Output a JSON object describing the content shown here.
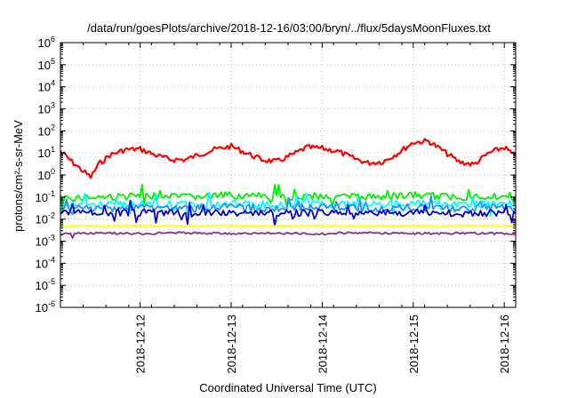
{
  "chart_data": {
    "type": "line",
    "title": "/data/run/goesPlots/archive/2018-12-16/03:00/bryn/../flux/5daysMoonFluxes.txt",
    "xlabel": "Coordinated Universal Time (UTC)",
    "ylabel": "protons/cm²-s-sr-MeV",
    "y_scale": "log",
    "ylim": [
      1e-06,
      1000000.0
    ],
    "y_ticks": [
      {
        "exp": "-6",
        "value": 1e-06
      },
      {
        "exp": "-5",
        "value": 1e-05
      },
      {
        "exp": "-4",
        "value": 0.0001
      },
      {
        "exp": "-3",
        "value": 0.001
      },
      {
        "exp": "-2",
        "value": 0.01
      },
      {
        "exp": "-1",
        "value": 0.1
      },
      {
        "exp": "0",
        "value": 1
      },
      {
        "exp": "1",
        "value": 10
      },
      {
        "exp": "2",
        "value": 100
      },
      {
        "exp": "3",
        "value": 1000
      },
      {
        "exp": "4",
        "value": 10000
      },
      {
        "exp": "5",
        "value": 100000
      },
      {
        "exp": "6",
        "value": 1000000
      }
    ],
    "y_tick_base": "10",
    "xlim": [
      "2018-12-11T03:00",
      "2018-12-16T03:00"
    ],
    "x_ticks": [
      {
        "label": "2018-12-12",
        "value": "2018-12-12T00:00"
      },
      {
        "label": "2018-12-13",
        "value": "2018-12-13T00:00"
      },
      {
        "label": "2018-12-14",
        "value": "2018-12-14T00:00"
      },
      {
        "label": "2018-12-15",
        "value": "2018-12-15T00:00"
      },
      {
        "label": "2018-12-16",
        "value": "2018-12-16T00:00"
      }
    ],
    "grid": true,
    "legend": "none",
    "series": [
      {
        "color": "#ff0000",
        "x": [
          "2018-12-11T03:00",
          "2018-12-11T06:00",
          "2018-12-11T09:00",
          "2018-12-11T11:00",
          "2018-12-11T13:00",
          "2018-12-11T16:00",
          "2018-12-11T20:00",
          "2018-12-12T00:00",
          "2018-12-12T04:00",
          "2018-12-12T08:00",
          "2018-12-12T12:00",
          "2018-12-12T16:00",
          "2018-12-12T20:00",
          "2018-12-13T00:00",
          "2018-12-13T04:00",
          "2018-12-13T08:00",
          "2018-12-13T12:00",
          "2018-12-13T16:00",
          "2018-12-13T20:00",
          "2018-12-14T00:00",
          "2018-12-14T04:00",
          "2018-12-14T08:00",
          "2018-12-14T12:00",
          "2018-12-14T16:00",
          "2018-12-14T20:00",
          "2018-12-15T00:00",
          "2018-12-15T04:00",
          "2018-12-15T08:00",
          "2018-12-15T12:00",
          "2018-12-15T16:00",
          "2018-12-15T20:00",
          "2018-12-16T00:00",
          "2018-12-16T03:00"
        ],
        "values": [
          12,
          4,
          1.5,
          0.8,
          3,
          8,
          14,
          15,
          8,
          5,
          5,
          9,
          15,
          20,
          10,
          5,
          4,
          8,
          18,
          16,
          12,
          6,
          3.5,
          4,
          10,
          30,
          35,
          12,
          4,
          3,
          10,
          18,
          7
        ]
      },
      {
        "color": "#00ee00",
        "x": [
          "2018-12-11T03:00",
          "2018-12-11T12:00",
          "2018-12-12T00:00",
          "2018-12-12T12:00",
          "2018-12-13T00:00",
          "2018-12-13T12:00",
          "2018-12-14T00:00",
          "2018-12-14T12:00",
          "2018-12-15T00:00",
          "2018-12-15T12:00",
          "2018-12-16T00:00",
          "2018-12-16T03:00"
        ],
        "values": [
          0.09,
          0.1,
          0.11,
          0.1,
          0.12,
          0.1,
          0.11,
          0.1,
          0.12,
          0.1,
          0.11,
          0.12
        ]
      },
      {
        "color": "#00ffff",
        "x": [
          "2018-12-11T03:00",
          "2018-12-11T12:00",
          "2018-12-12T00:00",
          "2018-12-12T12:00",
          "2018-12-13T00:00",
          "2018-12-13T12:00",
          "2018-12-14T00:00",
          "2018-12-14T12:00",
          "2018-12-15T00:00",
          "2018-12-15T12:00",
          "2018-12-16T00:00",
          "2018-12-16T03:00"
        ],
        "values": [
          0.04,
          0.045,
          0.05,
          0.045,
          0.05,
          0.045,
          0.05,
          0.045,
          0.05,
          0.045,
          0.05,
          0.045
        ]
      },
      {
        "color": "#1e90ff",
        "x": [
          "2018-12-11T03:00",
          "2018-12-11T12:00",
          "2018-12-12T00:00",
          "2018-12-12T12:00",
          "2018-12-13T00:00",
          "2018-12-13T12:00",
          "2018-12-14T00:00",
          "2018-12-14T12:00",
          "2018-12-15T00:00",
          "2018-12-15T12:00",
          "2018-12-16T00:00",
          "2018-12-16T03:00"
        ],
        "values": [
          0.03,
          0.03,
          0.035,
          0.03,
          0.035,
          0.03,
          0.035,
          0.03,
          0.035,
          0.03,
          0.035,
          0.03
        ]
      },
      {
        "color": "#0000cd",
        "x": [
          "2018-12-11T03:00",
          "2018-12-11T12:00",
          "2018-12-12T00:00",
          "2018-12-12T12:00",
          "2018-12-13T00:00",
          "2018-12-13T12:00",
          "2018-12-14T00:00",
          "2018-12-14T12:00",
          "2018-12-15T00:00",
          "2018-12-15T12:00",
          "2018-12-16T00:00",
          "2018-12-16T03:00"
        ],
        "values": [
          0.018,
          0.02,
          0.02,
          0.018,
          0.02,
          0.018,
          0.02,
          0.018,
          0.02,
          0.018,
          0.02,
          0.018
        ]
      },
      {
        "color": "#ffff00",
        "x": [
          "2018-12-11T03:00",
          "2018-12-16T03:00"
        ],
        "values": [
          0.005,
          0.005
        ]
      },
      {
        "color": "#8b2f8b",
        "x": [
          "2018-12-11T03:00",
          "2018-12-11T12:00",
          "2018-12-12T00:00",
          "2018-12-12T12:00",
          "2018-12-13T00:00",
          "2018-12-13T12:00",
          "2018-12-14T00:00",
          "2018-12-14T12:00",
          "2018-12-15T00:00",
          "2018-12-15T12:00",
          "2018-12-16T00:00",
          "2018-12-16T03:00"
        ],
        "values": [
          0.0022,
          0.0023,
          0.0022,
          0.0024,
          0.0022,
          0.0023,
          0.0022,
          0.0024,
          0.0022,
          0.0023,
          0.0022,
          0.0023
        ]
      }
    ]
  }
}
